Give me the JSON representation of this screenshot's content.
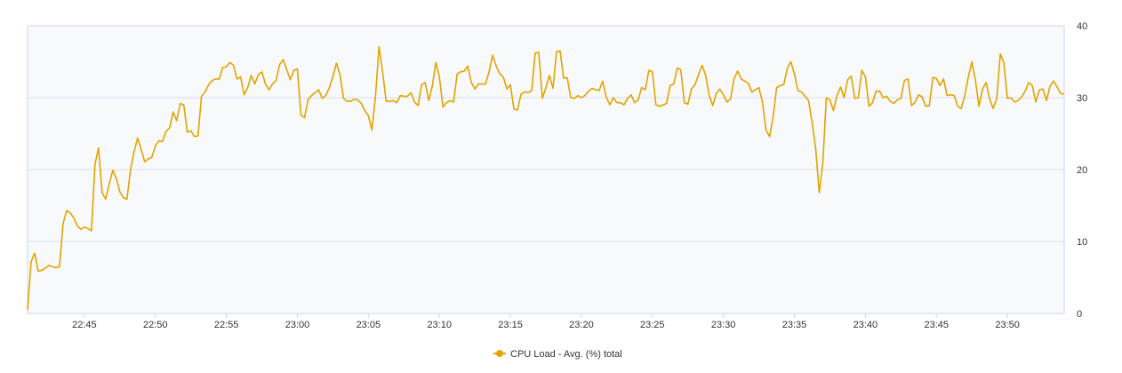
{
  "chart_data": {
    "type": "line",
    "ylim": [
      0,
      40
    ],
    "y_ticks": [
      "0",
      "10",
      "20",
      "30",
      "40"
    ],
    "y_axis_side": "right",
    "x_ticks": [
      "22:45",
      "22:50",
      "22:55",
      "23:00",
      "23:05",
      "23:10",
      "23:15",
      "23:20",
      "23:25",
      "23:30",
      "23:35",
      "23:40",
      "23:45",
      "23:50"
    ],
    "grid": true,
    "legend_position": "bottom-center",
    "series": [
      {
        "name": "CPU Load - Avg. (%) total",
        "color": "#e3a400",
        "sample_interval_min": 0.25,
        "values": [
          0.5,
          7.2,
          8.4,
          5.9,
          6.0,
          6.3,
          6.7,
          6.5,
          6.4,
          6.5,
          12.5,
          14.3,
          14.0,
          13.3,
          12.2,
          11.7,
          12.0,
          11.8,
          11.5,
          20.8,
          23.0,
          16.8,
          15.9,
          18.0,
          19.9,
          18.8,
          16.9,
          16.1,
          15.9,
          20.0,
          22.5,
          24.4,
          22.8,
          21.1,
          21.5,
          21.7,
          23.3,
          24.0,
          23.9,
          25.3,
          25.8,
          28.0,
          26.8,
          29.2,
          29.0,
          25.2,
          25.4,
          24.6,
          24.7,
          30.2,
          30.8,
          31.8,
          32.4,
          32.6,
          32.6,
          34.2,
          34.3,
          34.9,
          34.5,
          32.6,
          32.9,
          30.4,
          31.4,
          33.1,
          31.9,
          33.2,
          33.6,
          31.9,
          31.1,
          31.9,
          32.4,
          34.6,
          35.3,
          33.9,
          32.5,
          33.8,
          34.0,
          27.6,
          27.2,
          29.7,
          30.3,
          30.7,
          31.1,
          29.9,
          30.3,
          31.4,
          32.9,
          34.8,
          33.2,
          29.9,
          29.5,
          29.5,
          29.8,
          29.7,
          29.2,
          28.2,
          27.5,
          25.5,
          30.2,
          37.1,
          33.6,
          29.5,
          29.5,
          29.6,
          29.3,
          30.3,
          30.2,
          30.2,
          30.7,
          29.4,
          28.9,
          31.8,
          32.1,
          29.6,
          31.6,
          34.9,
          32.9,
          28.7,
          29.3,
          29.6,
          29.4,
          33.3,
          33.6,
          33.7,
          34.4,
          32.1,
          31.2,
          31.9,
          31.9,
          31.9,
          33.6,
          35.9,
          34.4,
          33.3,
          32.9,
          31.2,
          31.8,
          28.4,
          28.3,
          30.5,
          30.8,
          30.7,
          31.0,
          36.2,
          36.3,
          29.9,
          31.4,
          33.1,
          31.3,
          36.4,
          36.5,
          32.7,
          32.8,
          30.0,
          29.9,
          30.3,
          30.0,
          30.3,
          30.9,
          31.3,
          31.1,
          31.0,
          32.3,
          30.1,
          29.0,
          30.0,
          29.3,
          29.3,
          29.0,
          29.9,
          30.4,
          29.3,
          29.7,
          31.4,
          31.1,
          33.8,
          33.6,
          29.0,
          28.8,
          29.0,
          29.2,
          31.7,
          31.9,
          34.1,
          33.9,
          29.3,
          29.1,
          31.2,
          31.8,
          33.2,
          34.5,
          33.1,
          30.3,
          28.9,
          30.6,
          31.2,
          30.4,
          29.4,
          29.8,
          32.6,
          33.7,
          32.6,
          32.3,
          32.0,
          30.8,
          31.1,
          31.4,
          29.4,
          25.5,
          24.6,
          27.3,
          31.4,
          31.7,
          31.8,
          34.1,
          35.0,
          33.3,
          31.0,
          30.8,
          30.2,
          29.6,
          26.5,
          22.9,
          16.8,
          20.9,
          30.0,
          29.7,
          28.2,
          30.3,
          31.5,
          30.0,
          32.5,
          33.0,
          29.9,
          30.0,
          33.8,
          32.9,
          28.8,
          29.3,
          30.9,
          30.9,
          30.0,
          30.2,
          29.5,
          29.2,
          29.7,
          29.9,
          32.4,
          32.6,
          28.9,
          29.4,
          30.4,
          30.1,
          28.8,
          28.9,
          32.8,
          32.7,
          31.7,
          32.6,
          30.3,
          30.4,
          30.3,
          28.8,
          28.5,
          30.3,
          32.9,
          35.0,
          32.4,
          28.8,
          31.2,
          32.1,
          29.8,
          28.5,
          29.9,
          36.1,
          34.8,
          29.9,
          30.0,
          29.4,
          29.6,
          30.1,
          30.9,
          32.1,
          31.7,
          29.4,
          31.1,
          31.2,
          29.6,
          31.6,
          32.3,
          31.5,
          30.6,
          30.5
        ]
      }
    ]
  }
}
